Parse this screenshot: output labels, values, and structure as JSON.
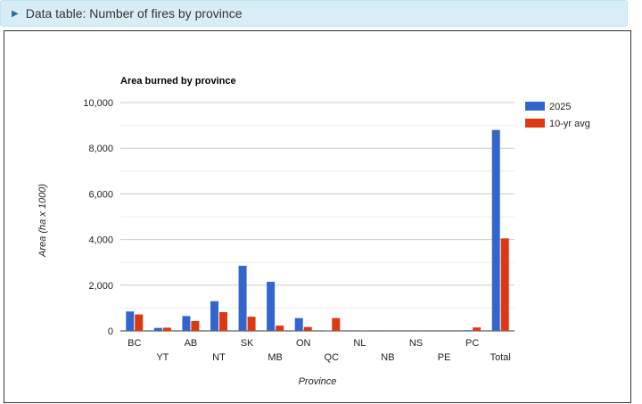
{
  "details": {
    "summary_label": "Data table: Number of fires by province"
  },
  "colors": {
    "series_2025": "#3366cc",
    "series_avg": "#dc3912",
    "grid": "#cccccc",
    "baseline": "#333333"
  },
  "chart_data": {
    "type": "bar",
    "title": "Area burned by province",
    "xlabel": "Province",
    "ylabel": "Area (ha x 1000)",
    "ylim": [
      0,
      10000
    ],
    "yticks": [
      "0",
      "2,000",
      "4,000",
      "6,000",
      "8,000",
      "10,000"
    ],
    "ytick_values": [
      0,
      2000,
      4000,
      6000,
      8000,
      10000
    ],
    "grid": true,
    "legend_position": "right",
    "categories": [
      "BC",
      "YT",
      "AB",
      "NT",
      "SK",
      "MB",
      "ON",
      "QC",
      "NL",
      "NB",
      "NS",
      "PE",
      "PC",
      "Total"
    ],
    "series": [
      {
        "name": "2025",
        "values": [
          850,
          130,
          650,
          1300,
          2850,
          2150,
          560,
          10,
          0,
          0,
          0,
          0,
          30,
          8800
        ]
      },
      {
        "name": "10-yr avg",
        "values": [
          720,
          140,
          430,
          820,
          620,
          230,
          170,
          560,
          5,
          5,
          3,
          0,
          150,
          4050
        ]
      }
    ]
  }
}
